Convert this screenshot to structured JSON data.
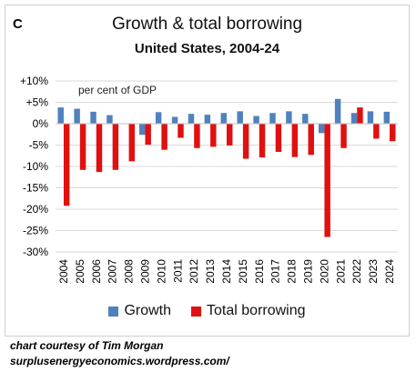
{
  "panel_letter": "C",
  "annotation": "per cent of GDP",
  "colors": {
    "growth": "#4F81BD",
    "borrowing": "#E01010",
    "gridline": "#d9d9d9",
    "axis_text": "#000000"
  },
  "credit": {
    "line1": "chart courtesy of Tim Morgan",
    "line2": "surplusenergyeconomics.wordpress.com/"
  },
  "chart_data": {
    "type": "bar",
    "title": "Growth & total borrowing",
    "subtitle": "United States, 2004-24",
    "categories": [
      "2004",
      "2005",
      "2006",
      "2007",
      "2008",
      "2009",
      "2010",
      "2011",
      "2012",
      "2013",
      "2014",
      "2015",
      "2016",
      "2017",
      "2018",
      "2019",
      "2020",
      "2021",
      "2022",
      "2023",
      "2024"
    ],
    "series": [
      {
        "name": "Growth",
        "values": [
          3.8,
          3.5,
          2.8,
          2.0,
          0.1,
          -2.6,
          2.7,
          1.6,
          2.3,
          2.1,
          2.5,
          2.9,
          1.8,
          2.5,
          2.9,
          2.3,
          -2.2,
          5.8,
          2.5,
          2.9,
          2.8
        ]
      },
      {
        "name": "Total borrowing",
        "values": [
          -19.2,
          -10.8,
          -11.3,
          -10.8,
          -8.8,
          -4.9,
          -6.1,
          -3.3,
          -5.7,
          -5.4,
          -5.1,
          -8.2,
          -7.9,
          -6.6,
          -7.8,
          -7.3,
          -26.5,
          -5.7,
          3.8,
          -3.5,
          -4.1
        ]
      }
    ],
    "xlabel": "",
    "ylabel": "",
    "ylim": [
      -30,
      10
    ],
    "yticks": [
      10,
      5,
      0,
      -5,
      -10,
      -15,
      -20,
      -25,
      -30
    ],
    "ytick_labels": [
      "+10%",
      "+5%",
      "0%",
      "-5%",
      "-10%",
      "-15%",
      "-20%",
      "-25%",
      "-30%"
    ],
    "grid": true,
    "legend": "bottom"
  }
}
